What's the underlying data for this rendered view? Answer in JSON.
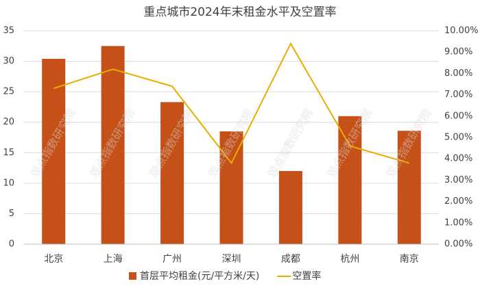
{
  "chart_data": {
    "type": "bar-line",
    "title": "重点城市2024年末租金水平及空置率",
    "watermark": "观点指数研究院",
    "categories": [
      "北京",
      "上海",
      "广州",
      "深圳",
      "成都",
      "杭州",
      "南京"
    ],
    "series": [
      {
        "name": "首层平均租金(元/平方米/天)",
        "color": "#c65118",
        "type": "bar",
        "values": [
          30.4,
          32.5,
          23.3,
          18.5,
          12.0,
          21.0,
          18.6
        ]
      },
      {
        "name": "空置率",
        "color": "#e8ad00",
        "type": "line",
        "axis": "y2",
        "values": [
          7.3,
          8.2,
          7.4,
          3.8,
          9.4,
          4.6,
          3.8
        ]
      }
    ],
    "ylim": [
      0,
      35
    ],
    "yticks": [
      0,
      5,
      10,
      15,
      20,
      25,
      30,
      35
    ],
    "y2lim": [
      0,
      10
    ],
    "y2ticks": [
      {
        "value": 0,
        "label": "0.00%"
      },
      {
        "value": 1,
        "label": "1.00%"
      },
      {
        "value": 2,
        "label": "2.00%"
      },
      {
        "value": 3,
        "label": "3.00%"
      },
      {
        "value": 4,
        "label": "4.00%"
      },
      {
        "value": 5,
        "label": "5.00%"
      },
      {
        "value": 6,
        "label": "6.00%"
      },
      {
        "value": 7,
        "label": "7.00%"
      },
      {
        "value": 8,
        "label": "8.00%"
      },
      {
        "value": 9,
        "label": "9.00%"
      },
      {
        "value": 10,
        "label": "10.00%"
      }
    ],
    "grid": true
  }
}
